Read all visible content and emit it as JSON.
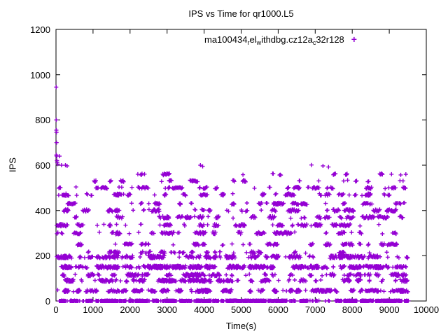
{
  "chart_data": {
    "type": "scatter",
    "title": "IPS vs Time for qr1000.L5",
    "xlabel": "Time(s)",
    "ylabel": "IPS",
    "xlim": [
      0,
      10000
    ],
    "ylim": [
      0,
      1200
    ],
    "xticks": [
      0,
      1000,
      2000,
      3000,
      4000,
      5000,
      6000,
      7000,
      8000,
      9000,
      10000
    ],
    "yticks": [
      0,
      200,
      400,
      600,
      800,
      1000,
      1200
    ],
    "grid": false,
    "legend_position": "top-right-inside",
    "marker": "plus",
    "marker_color": "#9400d3",
    "seed": 1337,
    "legend": {
      "label": "ma100434_rel_withdbg.cz12a_c32r128",
      "marker_glyph": "+",
      "segments": [
        {
          "text": "ma100434",
          "sub": false
        },
        {
          "text": "r",
          "sub": true
        },
        {
          "text": "el",
          "sub": false
        },
        {
          "text": "w",
          "sub": true
        },
        {
          "text": "ithdbg.cz12a",
          "sub": false
        },
        {
          "text": "c",
          "sub": true
        },
        {
          "text": "32r128",
          "sub": false
        }
      ]
    },
    "bands": [
      {
        "y": 0,
        "x0": 2,
        "x1": 9520,
        "count": 800,
        "jitter": 2
      },
      {
        "y": 45,
        "x0": 2,
        "x1": 9520,
        "count": 380,
        "jitter": 5
      },
      {
        "y": 90,
        "x0": 2,
        "x1": 9520,
        "count": 320,
        "jitter": 5
      },
      {
        "y": 115,
        "x0": 2,
        "x1": 9520,
        "count": 240,
        "jitter": 5
      },
      {
        "y": 150,
        "x0": 2,
        "x1": 9520,
        "count": 600,
        "jitter": 6
      },
      {
        "y": 195,
        "x0": 2,
        "x1": 9520,
        "count": 380,
        "jitter": 6
      },
      {
        "y": 215,
        "x0": 30,
        "x1": 9400,
        "count": 90,
        "jitter": 4
      },
      {
        "y": 250,
        "x0": 2,
        "x1": 9450,
        "count": 130,
        "jitter": 4
      },
      {
        "y": 300,
        "x0": 2,
        "x1": 9450,
        "count": 160,
        "jitter": 5
      },
      {
        "y": 335,
        "x0": 2,
        "x1": 9450,
        "count": 150,
        "jitter": 5
      },
      {
        "y": 370,
        "x0": 2,
        "x1": 9450,
        "count": 150,
        "jitter": 5
      },
      {
        "y": 400,
        "x0": 2,
        "x1": 9450,
        "count": 170,
        "jitter": 5
      },
      {
        "y": 430,
        "x0": 2,
        "x1": 9450,
        "count": 120,
        "jitter": 4
      },
      {
        "y": 470,
        "x0": 2,
        "x1": 9450,
        "count": 140,
        "jitter": 5
      },
      {
        "y": 500,
        "x0": 2,
        "x1": 9450,
        "count": 120,
        "jitter": 4
      },
      {
        "y": 530,
        "x0": 20,
        "x1": 9450,
        "count": 55,
        "jitter": 4
      },
      {
        "y": 560,
        "x0": 50,
        "x1": 9450,
        "count": 35,
        "jitter": 4
      }
    ],
    "outliers": [
      [
        6,
        945
      ],
      [
        8,
        800
      ],
      [
        10,
        755
      ],
      [
        13,
        745
      ],
      [
        16,
        700
      ],
      [
        9,
        645
      ],
      [
        20,
        640
      ],
      [
        26,
        620
      ],
      [
        34,
        612
      ],
      [
        48,
        605
      ],
      [
        95,
        640
      ],
      [
        150,
        600
      ],
      [
        255,
        600
      ],
      [
        300,
        597
      ],
      [
        3900,
        600
      ],
      [
        3960,
        595
      ],
      [
        6900,
        601
      ],
      [
        7210,
        597
      ],
      [
        7360,
        592
      ],
      [
        2210,
        560
      ],
      [
        5050,
        558
      ],
      [
        9060,
        560
      ],
      [
        9310,
        557
      ]
    ]
  }
}
